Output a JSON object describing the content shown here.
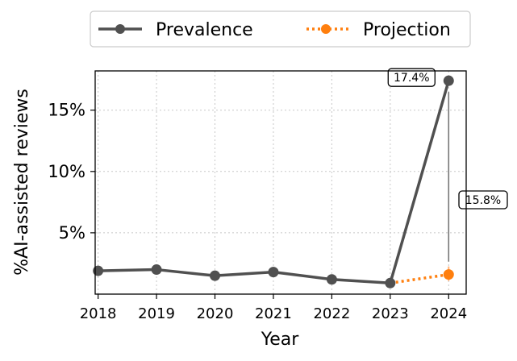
{
  "chart_data": {
    "type": "line",
    "xlabel": "Year",
    "ylabel": "%AI-assisted reviews",
    "x_ticks": [
      "2018",
      "2019",
      "2020",
      "2021",
      "2022",
      "2023",
      "2024"
    ],
    "y_ticks": [
      "5%",
      "10%",
      "15%"
    ],
    "y_tick_values": [
      5,
      10,
      15
    ],
    "xlim": [
      2017.95,
      2024.3
    ],
    "ylim": [
      0,
      18.2
    ],
    "grid": true,
    "legend_position": "top-center",
    "series": [
      {
        "name": "Prevalence",
        "color": "#505050",
        "style": "solid",
        "x": [
          2018,
          2019,
          2020,
          2021,
          2022,
          2023,
          2024
        ],
        "y": [
          1.9,
          2.0,
          1.5,
          1.8,
          1.2,
          0.9,
          17.4
        ]
      },
      {
        "name": "Projection",
        "color": "#ff7f0e",
        "style": "dotted",
        "x": [
          2023,
          2024
        ],
        "y": [
          0.9,
          1.6
        ]
      }
    ],
    "annotations": [
      {
        "text": "17.4%",
        "x": 2024,
        "y": 17.4
      },
      {
        "text": "15.8%",
        "x": 2024,
        "y": 1.6
      }
    ]
  }
}
